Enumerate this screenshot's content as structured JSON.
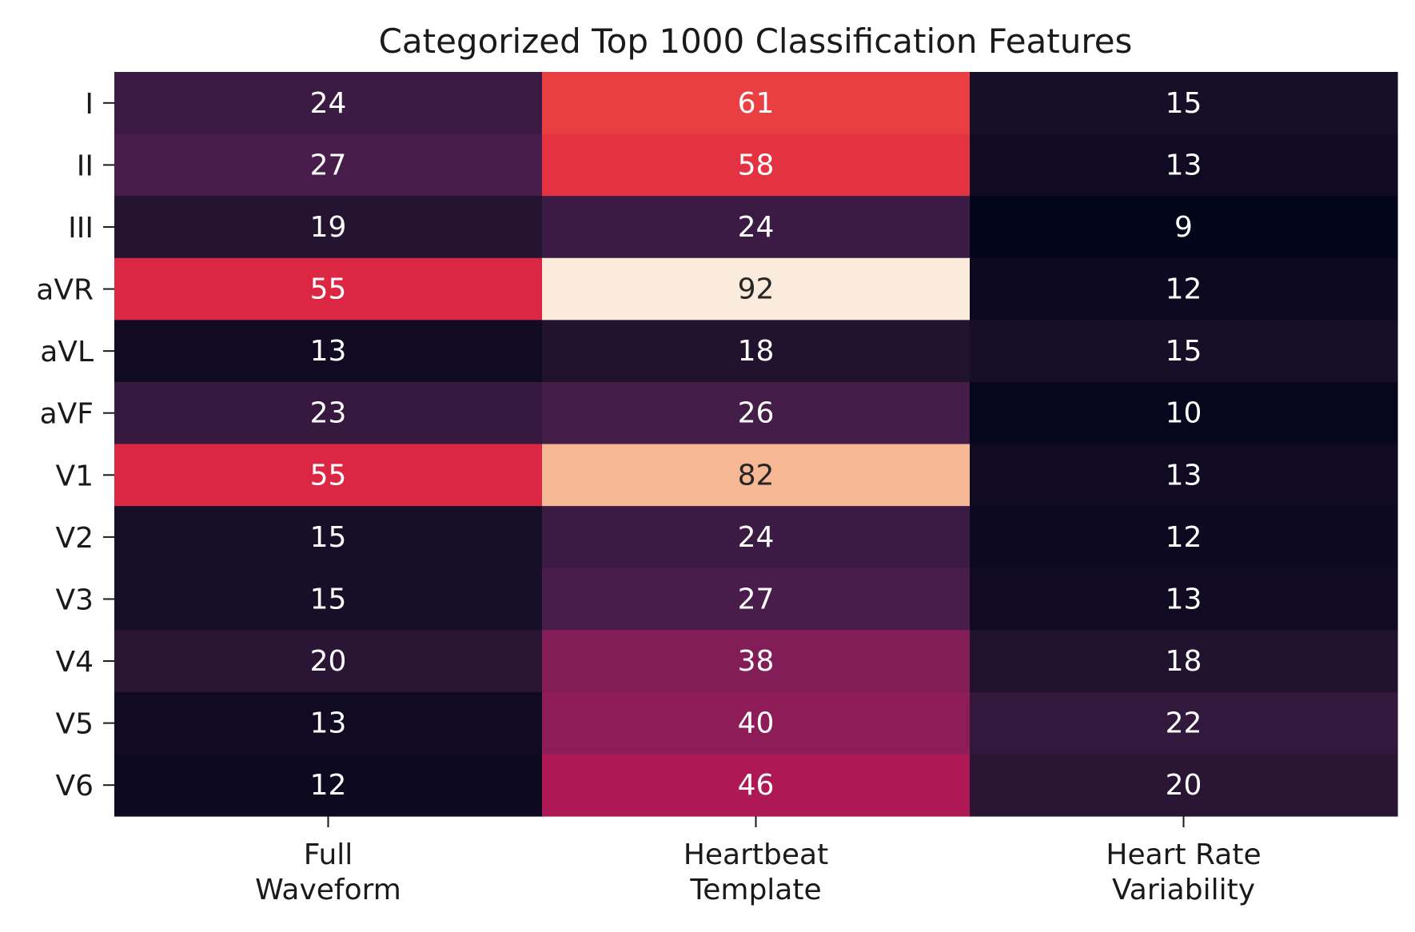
{
  "chart_data": {
    "type": "heatmap",
    "title": "Categorized Top 1000 Classification Features",
    "rows": [
      "I",
      "II",
      "III",
      "aVR",
      "aVL",
      "aVF",
      "V1",
      "V2",
      "V3",
      "V4",
      "V5",
      "V6"
    ],
    "columns": [
      [
        "Full",
        "Waveform"
      ],
      [
        "Heartbeat",
        "Template"
      ],
      [
        "Heart Rate",
        "Variability"
      ]
    ],
    "values": [
      [
        24,
        61,
        15
      ],
      [
        27,
        58,
        13
      ],
      [
        19,
        24,
        9
      ],
      [
        55,
        92,
        12
      ],
      [
        13,
        18,
        15
      ],
      [
        23,
        26,
        10
      ],
      [
        55,
        82,
        13
      ],
      [
        15,
        24,
        12
      ],
      [
        15,
        27,
        13
      ],
      [
        20,
        38,
        18
      ],
      [
        13,
        40,
        22
      ],
      [
        12,
        46,
        20
      ]
    ],
    "vmin": 9,
    "vmax": 92,
    "colormap": "rocket",
    "colorbar": false,
    "annotations": true
  }
}
